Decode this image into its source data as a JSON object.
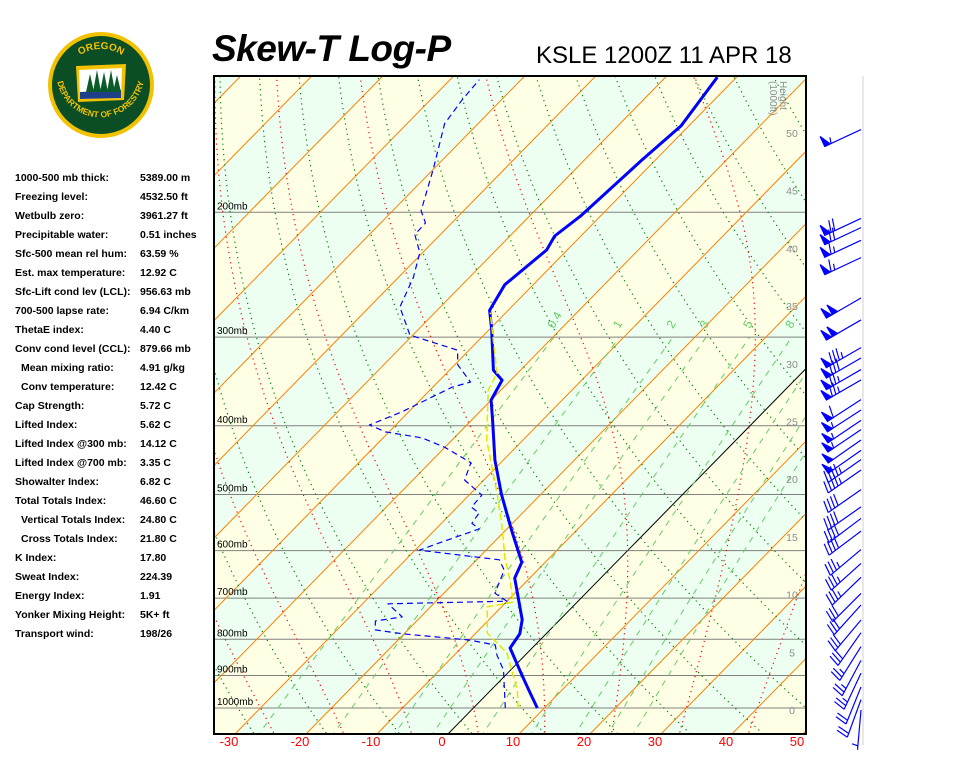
{
  "header": {
    "title": "Skew-T Log-P",
    "station": "KSLE 1200Z 11 APR 18"
  },
  "logo": {
    "top_text": "OREGON",
    "bottom_text": "DEPARTMENT OF FORESTRY",
    "colors": {
      "green": "#0b4d24",
      "gold": "#f2c200"
    }
  },
  "stats": [
    {
      "label": "1000-500 mb thick:",
      "value": "5389.00 m"
    },
    {
      "label": "Freezing level:",
      "value": "4532.50 ft"
    },
    {
      "label": "Wetbulb zero:",
      "value": "3961.27 ft"
    },
    {
      "label": "Precipitable water:",
      "value": "0.51 inches"
    },
    {
      "label": "Sfc-500 mean rel hum:",
      "value": "63.59 %"
    },
    {
      "label": "Est. max temperature:",
      "value": "12.92 C"
    },
    {
      "label": "Sfc-Lift cond lev (LCL):",
      "value": "956.63 mb"
    },
    {
      "label": "700-500 lapse rate:",
      "value": "6.94 C/km"
    },
    {
      "label": "ThetaE index:",
      "value": "4.40 C"
    },
    {
      "label": "Conv cond level (CCL):",
      "value": "879.66 mb"
    },
    {
      "label": "Mean mixing ratio:",
      "value": "4.91 g/kg",
      "indent": true
    },
    {
      "label": "Conv temperature:",
      "value": "12.42 C",
      "indent": true
    },
    {
      "label": "Cap Strength:",
      "value": "5.72 C"
    },
    {
      "label": "Lifted Index:",
      "value": "5.62 C"
    },
    {
      "label": "Lifted Index @300 mb:",
      "value": "14.12 C"
    },
    {
      "label": "Lifted Index @700 mb:",
      "value": "3.35 C"
    },
    {
      "label": "Showalter Index:",
      "value": "6.82 C"
    },
    {
      "label": "Total Totals Index:",
      "value": "46.60 C"
    },
    {
      "label": "Vertical Totals Index:",
      "value": "24.80 C",
      "indent": true
    },
    {
      "label": "Cross Totals Index:",
      "value": "21.80 C",
      "indent": true
    },
    {
      "label": "K Index:",
      "value": "17.80"
    },
    {
      "label": "Sweat Index:",
      "value": "224.39"
    },
    {
      "label": "Energy Index:",
      "value": "1.91"
    },
    {
      "label": "Yonker Mixing Height:",
      "value": "5K+ ft"
    },
    {
      "label": "Transport wind:",
      "value": "198/26"
    }
  ],
  "chart_data": {
    "type": "skew-t log-p",
    "x_ticks": [
      "-30",
      "-20",
      "-10",
      "0",
      "10",
      "20",
      "30",
      "40",
      "50"
    ],
    "x_tick_values": [
      -30,
      -20,
      -10,
      0,
      10,
      20,
      30,
      40,
      50
    ],
    "xlim": [
      -30,
      50
    ],
    "pressure_range_mb": [
      1075,
      129
    ],
    "pressure_scale": "log",
    "isobar_labels": [
      {
        "p": 1000,
        "label": "1000mb"
      },
      {
        "p": 900,
        "label": "900mb"
      },
      {
        "p": 800,
        "label": "800mb"
      },
      {
        "p": 700,
        "label": "700mb"
      },
      {
        "p": 600,
        "label": "600mb"
      },
      {
        "p": 500,
        "label": "500mb"
      },
      {
        "p": 400,
        "label": "400mb"
      },
      {
        "p": 300,
        "label": "300mb"
      },
      {
        "p": 200,
        "label": "200mb"
      }
    ],
    "height_axis": {
      "title_line1": "Height",
      "title_line2": "(1000ft)",
      "ticks": [
        "0",
        "5",
        "10",
        "15",
        "20",
        "25",
        "30",
        "35",
        "40",
        "45",
        "50"
      ]
    },
    "mixing_ratio_labels": [
      "0.4",
      "1",
      "2",
      "3",
      "5",
      "8"
    ],
    "mixing_ratio_values": [
      0.4,
      1,
      2,
      3,
      5,
      8,
      12,
      16,
      20
    ],
    "colors": {
      "temperature": "#0000ff",
      "dewpoint": "#0000ff",
      "wetbulb": "#e6e600",
      "isotherm": "#ff8000",
      "zero_isotherm": "#000000",
      "dry_adiabat": "#008000",
      "moist_adiabat": "#ff0000",
      "mixing_ratio": "#66cc66",
      "isobar": "#808080",
      "band_yellow": "#ffffe6",
      "band_green": "#edfff0",
      "wind": "#0000ff",
      "tick_label": "#ff0000"
    },
    "series": [
      {
        "key": "temperature",
        "style": "solid-bold",
        "points": [
          [
            1000,
            9.0
          ],
          [
            943,
            5.3
          ],
          [
            890,
            1.7
          ],
          [
            823,
            -3.1
          ],
          [
            786,
            -3.7
          ],
          [
            751,
            -5.3
          ],
          [
            656,
            -12.1
          ],
          [
            623,
            -13.3
          ],
          [
            561,
            -19.2
          ],
          [
            500,
            -25.5
          ],
          [
            447,
            -31.2
          ],
          [
            393,
            -37.0
          ],
          [
            368,
            -40.0
          ],
          [
            345,
            -41.2
          ],
          [
            334,
            -43.8
          ],
          [
            293,
            -49.6
          ],
          [
            275,
            -52.6
          ],
          [
            253,
            -54.0
          ],
          [
            226,
            -52.9
          ],
          [
            216,
            -53.7
          ],
          [
            202,
            -52.8
          ],
          [
            169,
            -51.9
          ],
          [
            151,
            -51.1
          ],
          [
            129,
            -52.7
          ]
        ]
      },
      {
        "key": "dewpoint",
        "style": "dashed",
        "points": [
          [
            1000,
            4.5
          ],
          [
            884,
            -1.0
          ],
          [
            842,
            -4.0
          ],
          [
            815,
            -5.6
          ],
          [
            802,
            -10.0
          ],
          [
            786,
            -20.2
          ],
          [
            776,
            -24.6
          ],
          [
            754,
            -25.8
          ],
          [
            744,
            -22.6
          ],
          [
            713,
            -26.4
          ],
          [
            707,
            -10.0
          ],
          [
            689,
            -12.8
          ],
          [
            639,
            -14.7
          ],
          [
            618,
            -16.8
          ],
          [
            599,
            -29.4
          ],
          [
            583,
            -27.3
          ],
          [
            559,
            -23.9
          ],
          [
            549,
            -25.7
          ],
          [
            531,
            -26.1
          ],
          [
            521,
            -28.0
          ],
          [
            501,
            -28.2
          ],
          [
            477,
            -32.7
          ],
          [
            451,
            -34.2
          ],
          [
            429,
            -40.0
          ],
          [
            416,
            -44.5
          ],
          [
            408,
            -50.5
          ],
          [
            399,
            -53.7
          ],
          [
            382,
            -50.9
          ],
          [
            353,
            -47.3
          ],
          [
            347,
            -45.4
          ],
          [
            328,
            -49.6
          ],
          [
            313,
            -51.6
          ],
          [
            298,
            -60.4
          ],
          [
            272,
            -65.7
          ],
          [
            247,
            -67.9
          ],
          [
            228,
            -70.4
          ],
          [
            215,
            -73.6
          ],
          [
            207,
            -73.7
          ],
          [
            199,
            -76.0
          ],
          [
            174,
            -80.0
          ],
          [
            150,
            -84.7
          ],
          [
            139,
            -85.5
          ],
          [
            130,
            -85.9
          ]
        ]
      },
      {
        "key": "wetbulb",
        "style": "dashed-yellow",
        "points": [
          [
            1000,
            6.3
          ],
          [
            943,
            3.7
          ],
          [
            836,
            -2.9
          ],
          [
            784,
            -8.4
          ],
          [
            720,
            -12.0
          ],
          [
            709,
            -9.0
          ],
          [
            660,
            -12.5
          ],
          [
            614,
            -16.3
          ],
          [
            556,
            -20.9
          ],
          [
            498,
            -26.3
          ],
          [
            419,
            -35.1
          ],
          [
            356,
            -41.8
          ],
          [
            337,
            -42.9
          ],
          [
            277,
            -52.2
          ]
        ]
      }
    ],
    "wind_barbs": [
      {
        "h": 50.3,
        "dir": 245,
        "spd": 55
      },
      {
        "h": 42.6,
        "dir": 245,
        "spd": 70
      },
      {
        "h": 41.8,
        "dir": 245,
        "spd": 70
      },
      {
        "h": 40.7,
        "dir": 245,
        "spd": 65
      },
      {
        "h": 39.2,
        "dir": 245,
        "spd": 65
      },
      {
        "h": 35.7,
        "dir": 240,
        "spd": 100
      },
      {
        "h": 33.8,
        "dir": 240,
        "spd": 100
      },
      {
        "h": 31.4,
        "dir": 240,
        "spd": 85
      },
      {
        "h": 30.5,
        "dir": 240,
        "spd": 80
      },
      {
        "h": 29.5,
        "dir": 240,
        "spd": 75
      },
      {
        "h": 28.6,
        "dir": 240,
        "spd": 75
      },
      {
        "h": 26.9,
        "dir": 237,
        "spd": 60
      },
      {
        "h": 26.0,
        "dir": 237,
        "spd": 55
      },
      {
        "h": 25.1,
        "dir": 236,
        "spd": 55
      },
      {
        "h": 24.3,
        "dir": 236,
        "spd": 55
      },
      {
        "h": 23.4,
        "dir": 235,
        "spd": 50
      },
      {
        "h": 22.5,
        "dir": 235,
        "spd": 50
      },
      {
        "h": 21.7,
        "dir": 235,
        "spd": 45
      },
      {
        "h": 20.8,
        "dir": 235,
        "spd": 45
      },
      {
        "h": 19.1,
        "dir": 235,
        "spd": 40
      },
      {
        "h": 17.6,
        "dir": 235,
        "spd": 40
      },
      {
        "h": 16.6,
        "dir": 233,
        "spd": 40
      },
      {
        "h": 15.5,
        "dir": 233,
        "spd": 40
      },
      {
        "h": 13.9,
        "dir": 230,
        "spd": 35
      },
      {
        "h": 12.7,
        "dir": 228,
        "spd": 35
      },
      {
        "h": 11.5,
        "dir": 226,
        "spd": 35
      },
      {
        "h": 10.1,
        "dir": 225,
        "spd": 30
      },
      {
        "h": 9.1,
        "dir": 222,
        "spd": 30
      },
      {
        "h": 7.8,
        "dir": 220,
        "spd": 30
      },
      {
        "h": 6.7,
        "dir": 215,
        "spd": 30
      },
      {
        "h": 5.5,
        "dir": 212,
        "spd": 25
      },
      {
        "h": 4.3,
        "dir": 208,
        "spd": 25
      },
      {
        "h": 3.2,
        "dir": 205,
        "spd": 25
      },
      {
        "h": 2.0,
        "dir": 202,
        "spd": 20
      },
      {
        "h": 0.9,
        "dir": 200,
        "spd": 20
      },
      {
        "h": 0.0,
        "dir": 185,
        "spd": 5
      }
    ]
  }
}
